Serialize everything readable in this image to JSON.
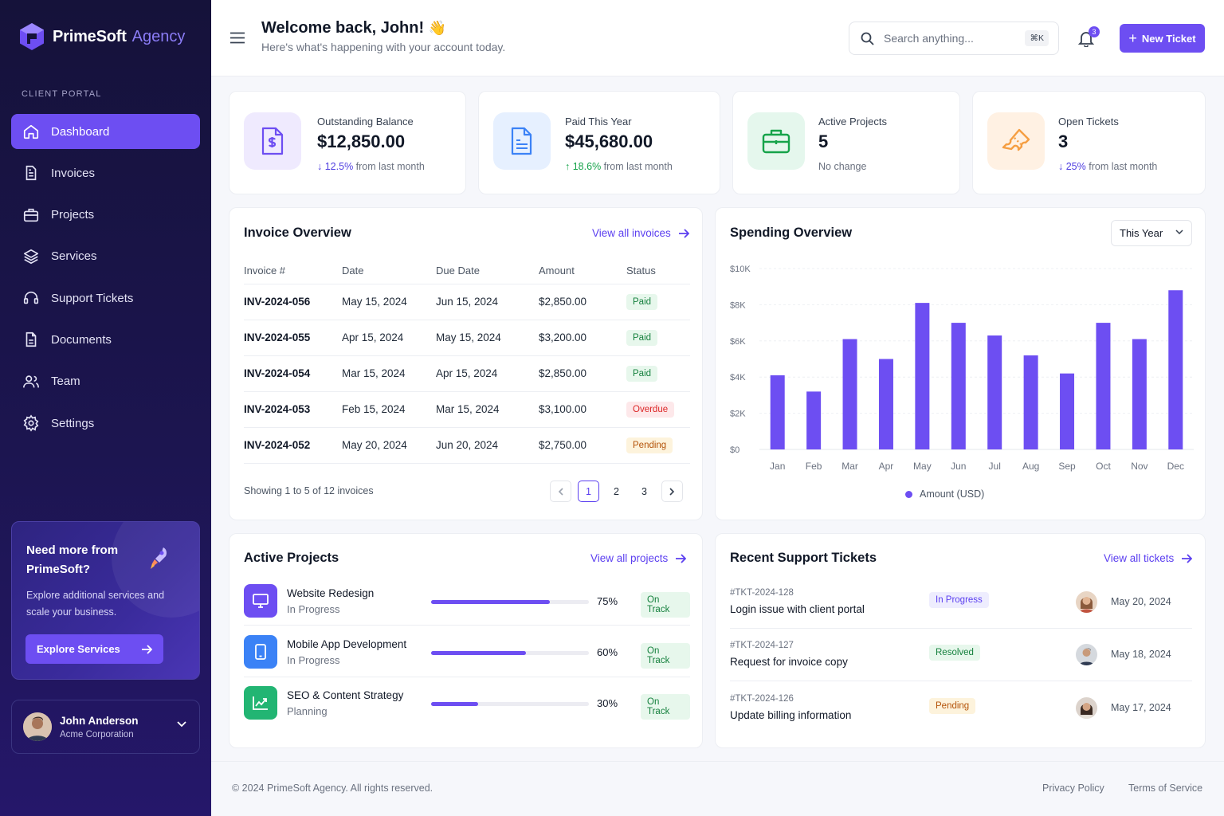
{
  "brand": {
    "name": "PrimeSoft",
    "suffix": "Agency"
  },
  "sidebar": {
    "section_label": "CLIENT PORTAL",
    "items": [
      {
        "label": "Dashboard",
        "icon": "home-icon",
        "active": true
      },
      {
        "label": "Invoices",
        "icon": "invoice-icon"
      },
      {
        "label": "Projects",
        "icon": "briefcase-icon"
      },
      {
        "label": "Services",
        "icon": "layers-icon"
      },
      {
        "label": "Support Tickets",
        "icon": "headset-icon"
      },
      {
        "label": "Documents",
        "icon": "document-icon"
      },
      {
        "label": "Team",
        "icon": "users-icon"
      },
      {
        "label": "Settings",
        "icon": "gear-icon"
      }
    ],
    "promo": {
      "title": "Need more from PrimeSoft?",
      "text": "Explore additional services and scale your business.",
      "button": "Explore Services"
    },
    "user": {
      "name": "John Anderson",
      "company": "Acme Corporation"
    }
  },
  "header": {
    "welcome": "Welcome back, John!",
    "wave": "👋",
    "subtitle": "Here's what's happening with your account today.",
    "search_placeholder": "Search anything...",
    "shortcut": "⌘K",
    "notification_count": "3",
    "new_ticket": "New Ticket"
  },
  "stats": [
    {
      "label": "Outstanding Balance",
      "value": "$12,850.00",
      "trend_value": "12.5%",
      "trend_text": "from last month",
      "direction": "down",
      "icon": "dollar-document-icon",
      "color": "#6d4ef2"
    },
    {
      "label": "Paid This Year",
      "value": "$45,680.00",
      "trend_value": "18.6%",
      "trend_text": "from last month",
      "direction": "up",
      "icon": "receipt-icon",
      "color": "#3b82f6"
    },
    {
      "label": "Active Projects",
      "value": "5",
      "trend_value": "",
      "trend_text": "No change",
      "direction": "none",
      "icon": "briefcase-icon",
      "color": "#16a34a"
    },
    {
      "label": "Open Tickets",
      "value": "3",
      "trend_value": "25%",
      "trend_text": "from last month",
      "direction": "down",
      "icon": "ticket-icon",
      "color": "#f59e42"
    }
  ],
  "invoices": {
    "title": "Invoice Overview",
    "link": "View all invoices",
    "columns": [
      "Invoice #",
      "Date",
      "Due Date",
      "Amount",
      "Status"
    ],
    "rows": [
      {
        "id": "INV-2024-056",
        "date": "May 15, 2024",
        "due": "Jun 15, 2024",
        "amount": "$2,850.00",
        "status": "Paid"
      },
      {
        "id": "INV-2024-055",
        "date": "Apr 15, 2024",
        "due": "May 15, 2024",
        "amount": "$3,200.00",
        "status": "Paid"
      },
      {
        "id": "INV-2024-054",
        "date": "Mar 15, 2024",
        "due": "Apr 15, 2024",
        "amount": "$2,850.00",
        "status": "Paid"
      },
      {
        "id": "INV-2024-053",
        "date": "Feb 15, 2024",
        "due": "Mar 15, 2024",
        "amount": "$3,100.00",
        "status": "Overdue"
      },
      {
        "id": "INV-2024-052",
        "date": "May 20, 2024",
        "due": "Jun 20, 2024",
        "amount": "$2,750.00",
        "status": "Pending"
      }
    ],
    "showing": "Showing 1 to 5 of 12 invoices",
    "pages": [
      "1",
      "2",
      "3"
    ],
    "current_page": "1"
  },
  "spending": {
    "title": "Spending Overview",
    "period": "This Year"
  },
  "chart_data": {
    "type": "bar",
    "title": "Spending Overview",
    "categories": [
      "Jan",
      "Feb",
      "Mar",
      "Apr",
      "May",
      "Jun",
      "Jul",
      "Aug",
      "Sep",
      "Oct",
      "Nov",
      "Dec"
    ],
    "series": [
      {
        "name": "Amount (USD)",
        "values": [
          4100,
          3200,
          6100,
          5000,
          8100,
          7000,
          6300,
          5200,
          4200,
          7000,
          6100,
          8800
        ]
      }
    ],
    "ylim": [
      0,
      10000
    ],
    "yticks": [
      "$0",
      "$2K",
      "$4K",
      "$6K",
      "$8K",
      "$10K"
    ],
    "ytick_values": [
      0,
      2000,
      4000,
      6000,
      8000,
      10000
    ],
    "grid": true,
    "legend": "bottom",
    "color": "#6d4ef2"
  },
  "projects": {
    "title": "Active Projects",
    "link": "View all projects",
    "items": [
      {
        "name": "Website Redesign",
        "stage": "In Progress",
        "progress": 0.75,
        "pct": "75%",
        "status": "On Track",
        "icon": "monitor-icon",
        "color": "#6d4ef2"
      },
      {
        "name": "Mobile App Development",
        "stage": "In Progress",
        "progress": 0.6,
        "pct": "60%",
        "status": "On Track",
        "icon": "mobile-icon",
        "color": "#3b82f6"
      },
      {
        "name": "SEO & Content Strategy",
        "stage": "Planning",
        "progress": 0.3,
        "pct": "30%",
        "status": "On Track",
        "icon": "chart-icon",
        "color": "#22b573"
      }
    ]
  },
  "tickets": {
    "title": "Recent Support Tickets",
    "link": "View all tickets",
    "items": [
      {
        "id": "#TKT-2024-128",
        "title": "Login issue with client portal",
        "status": "In Progress",
        "date": "May 20, 2024"
      },
      {
        "id": "#TKT-2024-127",
        "title": "Request for invoice copy",
        "status": "Resolved",
        "date": "May 18, 2024"
      },
      {
        "id": "#TKT-2024-126",
        "title": "Update billing information",
        "status": "Pending",
        "date": "May 17, 2024"
      }
    ]
  },
  "footer": {
    "copyright": "© 2024 PrimeSoft Agency. All rights reserved.",
    "privacy": "Privacy Policy",
    "terms": "Terms of Service"
  }
}
